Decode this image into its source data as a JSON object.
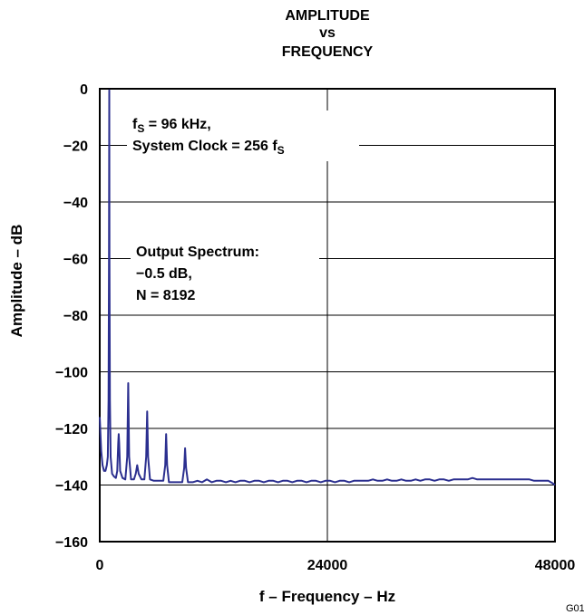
{
  "chart_data": {
    "type": "line",
    "title": [
      "AMPLITUDE",
      "vs",
      "FREQUENCY"
    ],
    "xlabel": "f – Frequency – Hz",
    "ylabel": "Amplitude – dB",
    "xlim": [
      0,
      48000
    ],
    "ylim": [
      -160,
      0
    ],
    "xticks": [
      0,
      24000,
      48000
    ],
    "yticks": [
      0,
      -20,
      -40,
      -60,
      -80,
      -100,
      -120,
      -140,
      -160
    ],
    "xtick_labels": [
      "0",
      "24000",
      "48000"
    ],
    "ytick_labels": [
      "0",
      "−20",
      "−40",
      "−60",
      "−80",
      "−100",
      "−120",
      "−140",
      "−160"
    ],
    "grid": true,
    "line_color": "#2b2f8f",
    "annotations": [
      {
        "parts": [
          {
            "line": [
              {
                "text": "f"
              },
              {
                "text": "S",
                "sub": true
              },
              {
                "text": " = 96 kHz,"
              }
            ]
          },
          {
            "line": [
              {
                "text": "System Clock = 256 f"
              },
              {
                "text": "S",
                "sub": true
              }
            ]
          }
        ]
      },
      {
        "parts": [
          {
            "line": [
              {
                "text": "Output Spectrum:"
              }
            ]
          },
          {
            "line": [
              {
                "text": "−0.5 dB,"
              }
            ]
          },
          {
            "line": [
              {
                "text": "N = 8192"
              }
            ]
          }
        ]
      }
    ],
    "series": [
      {
        "values": [
          [
            0,
            -116
          ],
          [
            150,
            -128
          ],
          [
            300,
            -133
          ],
          [
            450,
            -135
          ],
          [
            600,
            -135
          ],
          [
            750,
            -133
          ],
          [
            850,
            -130
          ],
          [
            930,
            -110
          ],
          [
            980,
            -60
          ],
          [
            1000,
            -0.5
          ],
          [
            1020,
            -60
          ],
          [
            1070,
            -110
          ],
          [
            1150,
            -130
          ],
          [
            1300,
            -136
          ],
          [
            1500,
            -137
          ],
          [
            1700,
            -137.5
          ],
          [
            1850,
            -135
          ],
          [
            1950,
            -125
          ],
          [
            2000,
            -122
          ],
          [
            2050,
            -125
          ],
          [
            2150,
            -135
          ],
          [
            2400,
            -137.5
          ],
          [
            2700,
            -138
          ],
          [
            2900,
            -130
          ],
          [
            3000,
            -104
          ],
          [
            3100,
            -130
          ],
          [
            3300,
            -138
          ],
          [
            3600,
            -138
          ],
          [
            3800,
            -136
          ],
          [
            3950,
            -133
          ],
          [
            4100,
            -136
          ],
          [
            4400,
            -138
          ],
          [
            4700,
            -138
          ],
          [
            4900,
            -130
          ],
          [
            5000,
            -114
          ],
          [
            5100,
            -130
          ],
          [
            5300,
            -138
          ],
          [
            5700,
            -138.5
          ],
          [
            6200,
            -138.5
          ],
          [
            6700,
            -138.5
          ],
          [
            6900,
            -133
          ],
          [
            7000,
            -122
          ],
          [
            7100,
            -133
          ],
          [
            7300,
            -139
          ],
          [
            7700,
            -139
          ],
          [
            8200,
            -139
          ],
          [
            8700,
            -139
          ],
          [
            8900,
            -134
          ],
          [
            9000,
            -127
          ],
          [
            9100,
            -134
          ],
          [
            9300,
            -139
          ],
          [
            9800,
            -139
          ],
          [
            10300,
            -138.5
          ],
          [
            10800,
            -139
          ],
          [
            11300,
            -138
          ],
          [
            11800,
            -139
          ],
          [
            12300,
            -138.5
          ],
          [
            12800,
            -138.5
          ],
          [
            13300,
            -139
          ],
          [
            13800,
            -138.5
          ],
          [
            14300,
            -139
          ],
          [
            14800,
            -138.5
          ],
          [
            15300,
            -138.5
          ],
          [
            15800,
            -139
          ],
          [
            16300,
            -138.5
          ],
          [
            16800,
            -138.5
          ],
          [
            17300,
            -139
          ],
          [
            17800,
            -138.5
          ],
          [
            18300,
            -138.5
          ],
          [
            18800,
            -139
          ],
          [
            19300,
            -138.5
          ],
          [
            19800,
            -138.5
          ],
          [
            20300,
            -139
          ],
          [
            20800,
            -138.5
          ],
          [
            21300,
            -138.5
          ],
          [
            21800,
            -139
          ],
          [
            22300,
            -138.5
          ],
          [
            22800,
            -138.5
          ],
          [
            23300,
            -139
          ],
          [
            23800,
            -138.5
          ],
          [
            24300,
            -138.5
          ],
          [
            24800,
            -139
          ],
          [
            25300,
            -138.5
          ],
          [
            25800,
            -138.5
          ],
          [
            26300,
            -139
          ],
          [
            26800,
            -138.5
          ],
          [
            27300,
            -138.5
          ],
          [
            27800,
            -138.5
          ],
          [
            28300,
            -138.5
          ],
          [
            28800,
            -138
          ],
          [
            29300,
            -138.5
          ],
          [
            29800,
            -138.5
          ],
          [
            30300,
            -138
          ],
          [
            30800,
            -138.5
          ],
          [
            31300,
            -138.5
          ],
          [
            31800,
            -138
          ],
          [
            32300,
            -138.5
          ],
          [
            32800,
            -138.5
          ],
          [
            33300,
            -138
          ],
          [
            33800,
            -138.5
          ],
          [
            34300,
            -138
          ],
          [
            34800,
            -138
          ],
          [
            35300,
            -138.5
          ],
          [
            35800,
            -138
          ],
          [
            36300,
            -138
          ],
          [
            36800,
            -138.5
          ],
          [
            37300,
            -138
          ],
          [
            37800,
            -138
          ],
          [
            38300,
            -138
          ],
          [
            38800,
            -138
          ],
          [
            39300,
            -137.5
          ],
          [
            39800,
            -138
          ],
          [
            40300,
            -138
          ],
          [
            40800,
            -138
          ],
          [
            41300,
            -138
          ],
          [
            41800,
            -138
          ],
          [
            42300,
            -138
          ],
          [
            42800,
            -138
          ],
          [
            43300,
            -138
          ],
          [
            43800,
            -138
          ],
          [
            44300,
            -138
          ],
          [
            44800,
            -138
          ],
          [
            45300,
            -138
          ],
          [
            45800,
            -138.5
          ],
          [
            46300,
            -138.5
          ],
          [
            46800,
            -138.5
          ],
          [
            47300,
            -138.5
          ],
          [
            47800,
            -139.5
          ],
          [
            48000,
            -140
          ]
        ]
      }
    ]
  },
  "figure_id": "G01"
}
